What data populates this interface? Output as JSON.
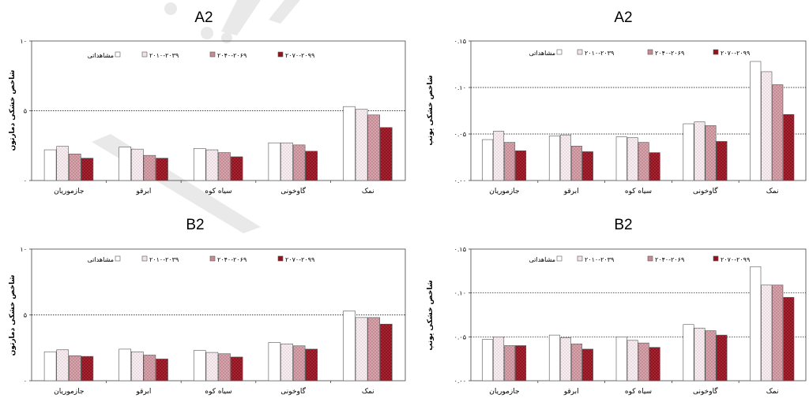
{
  "colors": {
    "s1": "#ffffff",
    "s2": "#f1e6ea",
    "s3": "#c58c95",
    "s4": "#93121f",
    "edge": "#555555",
    "axis": "#444444",
    "grid": "#000000",
    "watermark": "#e9e9e9"
  },
  "chart_data": [
    {
      "type": "bar",
      "title": "A2",
      "ylabel": "شاخص خشکی دمارتون",
      "categories": [
        "جازموریان",
        "ابرقو",
        "سیاه کوه",
        "گاوخونی",
        "نمک"
      ],
      "ylim": [
        0,
        10
      ],
      "yticks": [
        0,
        5,
        10
      ],
      "ytick_labels": [
        "۰",
        "۵",
        "۱۰"
      ],
      "gridlines": [
        5
      ],
      "series": [
        {
          "name": "مشاهداتی",
          "values": [
            2.2,
            2.4,
            2.3,
            2.7,
            5.3
          ]
        },
        {
          "name": "۲۰۱۰-۲۰۳۹",
          "values": [
            2.45,
            2.25,
            2.2,
            2.7,
            5.1
          ]
        },
        {
          "name": "۲۰۴۰-۲۰۶۹",
          "values": [
            1.9,
            1.8,
            2.0,
            2.55,
            4.7
          ]
        },
        {
          "name": "۲۰۷۰-۲۰۹۹",
          "values": [
            1.6,
            1.6,
            1.7,
            2.1,
            3.8
          ]
        }
      ]
    },
    {
      "type": "bar",
      "title": "A2",
      "ylabel": "شاخص خشکی یونپ",
      "categories": [
        "جازموریان",
        "ابرقو",
        "سیاه کوه",
        "گاوخونی",
        "نمک"
      ],
      "ylim": [
        0,
        0.15
      ],
      "yticks": [
        0,
        0.05,
        0.1,
        0.15
      ],
      "ytick_labels": [
        "۰.۰۰",
        "۰.۰۵",
        "۰.۱۰",
        "۰.۱۵"
      ],
      "gridlines": [
        0.05,
        0.1
      ],
      "series": [
        {
          "name": "مشاهداتی",
          "values": [
            0.044,
            0.048,
            0.047,
            0.061,
            0.128
          ]
        },
        {
          "name": "۲۰۱۰-۲۰۳۹",
          "values": [
            0.053,
            0.049,
            0.046,
            0.063,
            0.117
          ]
        },
        {
          "name": "۲۰۴۰-۲۰۶۹",
          "values": [
            0.041,
            0.037,
            0.041,
            0.059,
            0.103
          ]
        },
        {
          "name": "۲۰۷۰-۲۰۹۹",
          "values": [
            0.032,
            0.031,
            0.03,
            0.042,
            0.071
          ]
        }
      ]
    },
    {
      "type": "bar",
      "title": "B2",
      "ylabel": "شاخص خشکی دمارتون",
      "categories": [
        "جازموریان",
        "ابرقو",
        "سیاه کوه",
        "گاوخونی",
        "نمک"
      ],
      "ylim": [
        0,
        10
      ],
      "yticks": [
        0,
        5,
        10
      ],
      "ytick_labels": [
        "۰",
        "۵",
        "۱۰"
      ],
      "gridlines": [
        5
      ],
      "series": [
        {
          "name": "مشاهداتی",
          "values": [
            2.2,
            2.4,
            2.3,
            2.9,
            5.3
          ]
        },
        {
          "name": "۲۰۱۰-۲۰۳۹",
          "values": [
            2.35,
            2.2,
            2.15,
            2.8,
            4.8
          ]
        },
        {
          "name": "۲۰۴۰-۲۰۶۹",
          "values": [
            1.9,
            1.95,
            2.05,
            2.65,
            4.8
          ]
        },
        {
          "name": "۲۰۷۰-۲۰۹۹",
          "values": [
            1.85,
            1.65,
            1.8,
            2.4,
            4.3
          ]
        }
      ]
    },
    {
      "type": "bar",
      "title": "B2",
      "ylabel": "شاخص خشکی یونپ",
      "categories": [
        "جازموریان",
        "ابرقو",
        "سیاه کوه",
        "گاوخونی",
        "نمک"
      ],
      "ylim": [
        0,
        0.15
      ],
      "yticks": [
        0,
        0.05,
        0.1,
        0.15
      ],
      "ytick_labels": [
        "۰.۰۰",
        "۰.۰۵",
        "۰.۱۰",
        "۰.۱۵"
      ],
      "gridlines": [
        0.05,
        0.1
      ],
      "series": [
        {
          "name": "مشاهداتی",
          "values": [
            0.047,
            0.052,
            0.05,
            0.064,
            0.13
          ]
        },
        {
          "name": "۲۰۱۰-۲۰۳۹",
          "values": [
            0.05,
            0.049,
            0.046,
            0.06,
            0.109
          ]
        },
        {
          "name": "۲۰۴۰-۲۰۶۹",
          "values": [
            0.04,
            0.042,
            0.043,
            0.057,
            0.109
          ]
        },
        {
          "name": "۲۰۷۰-۲۰۹۹",
          "values": [
            0.04,
            0.036,
            0.038,
            0.052,
            0.095
          ]
        }
      ]
    }
  ]
}
